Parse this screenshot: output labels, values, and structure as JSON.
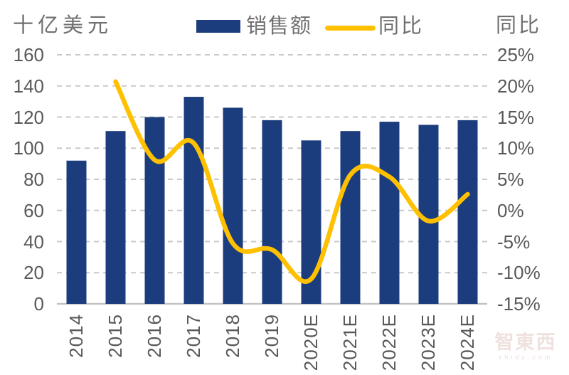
{
  "legend": {
    "position": "top",
    "items": [
      {
        "label": "销售额",
        "type": "bar",
        "color": "#1c3d7d"
      },
      {
        "label": "同比",
        "type": "line",
        "color": "#ffc000"
      }
    ]
  },
  "watermark": {
    "text": "智東西",
    "subtext": "zhidx.com"
  },
  "chart_data": {
    "type": "bar",
    "subtype": "bar+line combo, dual axis",
    "categories": [
      "2014",
      "2015",
      "2016",
      "2017",
      "2018",
      "2019",
      "2020E",
      "2021E",
      "2022E",
      "2023E",
      "2024E"
    ],
    "series": [
      {
        "name": "销售额",
        "type": "bar",
        "axis": "left",
        "color": "#1c3d7d",
        "values": [
          92,
          111,
          120,
          133,
          126,
          118,
          105,
          111,
          117,
          115,
          118
        ]
      },
      {
        "name": "同比",
        "type": "line",
        "axis": "right",
        "color": "#ffc000",
        "values": [
          null,
          20.7,
          8.1,
          10.8,
          -5.3,
          -6.3,
          -11.0,
          5.7,
          5.4,
          -1.7,
          2.6
        ]
      }
    ],
    "left_axis": {
      "title": "十亿美元",
      "min": 0,
      "max": 160,
      "step": 20,
      "tick_labels": [
        "160",
        "140",
        "120",
        "100",
        "80",
        "60",
        "40",
        "20",
        "0"
      ]
    },
    "right_axis": {
      "title": "同比",
      "min": -15,
      "max": 25,
      "step": 5,
      "tick_labels": [
        "25%",
        "20%",
        "15%",
        "10%",
        "5%",
        "0%",
        "-5%",
        "-10%",
        "-15%"
      ]
    },
    "grid": {
      "horizontal": "dashed",
      "color": "#c9c9c9",
      "axis_line_color": "#c3c3c3"
    },
    "text_color": "#595959",
    "x_labels_rotation": "90deg counterclockwise"
  }
}
